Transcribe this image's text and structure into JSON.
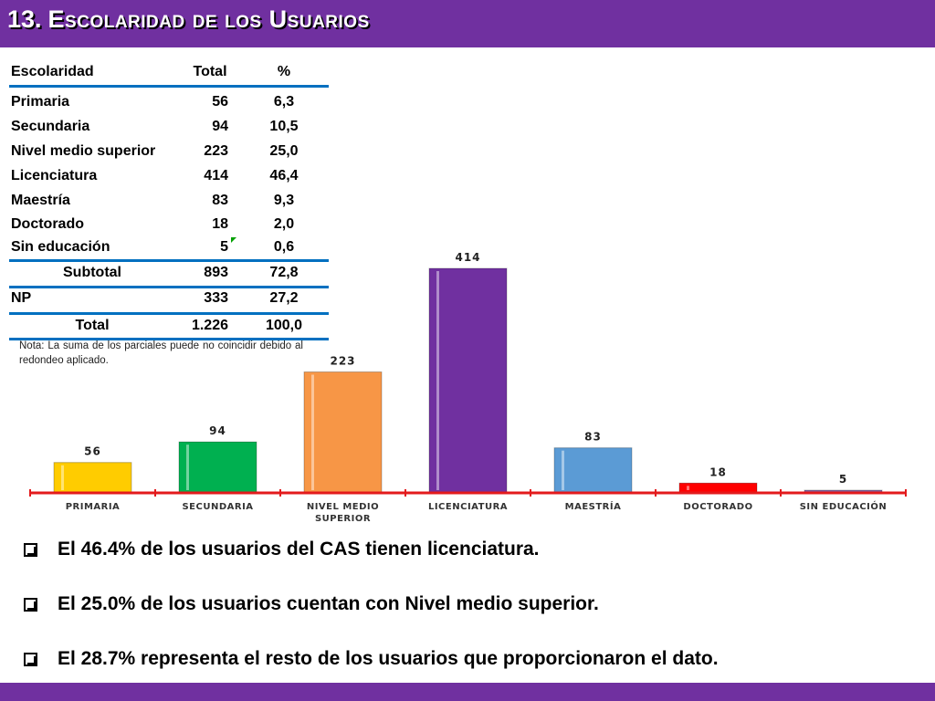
{
  "header": {
    "number": "13.",
    "title": "Escolaridad de los Usuarios"
  },
  "table": {
    "headers": [
      "Escolaridad",
      "Total",
      "%"
    ],
    "rows": [
      {
        "label": "Primaria",
        "total": "56",
        "pct": "6,3"
      },
      {
        "label": "Secundaria",
        "total": "94",
        "pct": "10,5"
      },
      {
        "label": "Nivel medio superior",
        "total": "223",
        "pct": "25,0"
      },
      {
        "label": "Licenciatura",
        "total": "414",
        "pct": "46,4"
      },
      {
        "label": "Maestría",
        "total": "83",
        "pct": "9,3"
      },
      {
        "label": "Doctorado",
        "total": "18",
        "pct": "2,0"
      },
      {
        "label": "Sin educación",
        "total": "5",
        "pct": "0,6"
      }
    ],
    "subtotal": {
      "label": "Subtotal",
      "total": "893",
      "pct": "72,8"
    },
    "np": {
      "label": "NP",
      "total": "333",
      "pct": "27,2"
    },
    "grand_total": {
      "label": "Total",
      "total": "1.226",
      "pct": "100,0"
    },
    "note": "Nota: La suma de los parciales puede no coincidir debido al redondeo aplicado."
  },
  "chart_data": {
    "type": "bar",
    "categories": [
      "PRIMARIA",
      "SECUNDARIA",
      "NIVEL MEDIO SUPERIOR",
      "LICENCIATURA",
      "MAESTRÍA",
      "DOCTORADO",
      "SIN EDUCACIÓN"
    ],
    "category_label_lines": [
      [
        "PRIMARIA"
      ],
      [
        "SECUNDARIA"
      ],
      [
        "NIVEL MEDIO",
        "SUPERIOR"
      ],
      [
        "LICENCIATURA"
      ],
      [
        "MAESTRÍA"
      ],
      [
        "DOCTORADO"
      ],
      [
        "SIN EDUCACIÓN"
      ]
    ],
    "values": [
      56,
      94,
      223,
      414,
      83,
      18,
      5
    ],
    "colors": [
      "#ffcc00",
      "#00b050",
      "#f79646",
      "#7030a0",
      "#5b9bd5",
      "#ff0000",
      "#8064a2"
    ],
    "axis_color": "#e31a1c",
    "ylim": [
      0,
      414
    ],
    "title": "",
    "xlabel": "",
    "ylabel": "",
    "grid": false,
    "legend": "none"
  },
  "bullets": [
    "El 46.4% de los usuarios del CAS tienen licenciatura.",
    "El 25.0% de los usuarios cuentan con Nivel medio superior.",
    "El  28.7% representa el resto de los usuarios que proporcionaron el dato."
  ]
}
